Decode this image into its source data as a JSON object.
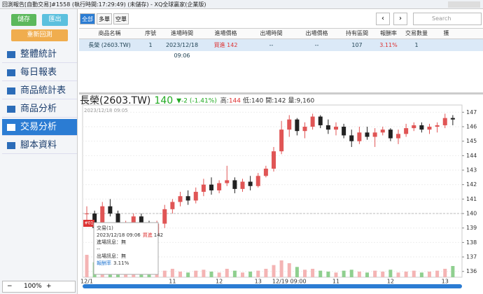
{
  "window": {
    "title": "回測報告[自動交易]#1558 (執行時間:17:29:49) (未儲存) - XQ全球贏家(企業版)"
  },
  "sidebar": {
    "buttons": [
      "儲存",
      "匯出",
      "重新回測"
    ],
    "menu": [
      "整體統計",
      "每日報表",
      "商品統計表",
      "商品分析",
      "交易分析",
      "腳本資料"
    ],
    "zoom": "100%"
  },
  "toolbar": {
    "tabs": [
      "全部",
      "多單",
      "空單"
    ],
    "search": "Search"
  },
  "table": {
    "columns": [
      "商品名稱",
      "序號",
      "進場時間",
      "進場價格",
      "出場時間",
      "出場價格",
      "持有區間",
      "報酬率",
      "交易數量",
      "獲"
    ],
    "rows": [
      [
        "長榮 (2603.TW)",
        "1",
        "2023/12/18 09:06",
        "買進 142",
        "--",
        "--",
        "107",
        "3.11%",
        "1",
        ""
      ]
    ]
  },
  "chart_data": {
    "type": "candlestick",
    "symbol": "長榮(2603.TW)",
    "price": 140,
    "change": "▼-2 (-1.41%)",
    "stats": [
      {
        "label": "高:",
        "value": 144
      },
      {
        "label": "低:",
        "value": 140
      },
      {
        "label": "開:",
        "value": 142
      },
      {
        "label": "量:",
        "value": "9,160"
      }
    ],
    "start_label": "2023/12/18 09:05",
    "categories": [
      "12/1",
      null,
      null,
      null,
      null,
      null,
      null,
      null,
      null,
      null,
      null,
      "11",
      null,
      null,
      null,
      null,
      null,
      "12",
      null,
      null,
      null,
      null,
      "13",
      null,
      null,
      null,
      "12/19 09:00",
      null,
      null,
      null,
      null,
      null,
      "11",
      null,
      null,
      null,
      null,
      null,
      null,
      "12",
      null,
      null,
      null,
      null,
      null,
      null,
      "13",
      null
    ],
    "open": [
      140,
      140,
      139,
      140.5,
      140,
      138.8,
      139.2,
      139.8,
      139,
      138.5,
      139.3,
      140.3,
      140.8,
      141.2,
      140.9,
      141.5,
      142,
      141.6,
      142.1,
      142.3,
      141.7,
      142.2,
      141.9,
      142.6,
      143.1,
      144.3,
      145.8,
      146.5,
      145.7,
      146,
      146.7,
      146.1,
      145.8,
      146,
      145.4,
      145,
      145.6,
      145.3,
      145.6,
      145.8,
      145.2,
      145.5,
      145.9,
      146.1,
      145.8,
      146,
      146.1,
      146.6
    ],
    "high": [
      140.5,
      140.2,
      140.8,
      141,
      140.2,
      139.5,
      140,
      140,
      139.5,
      139.5,
      140.6,
      141,
      141.5,
      141.6,
      141.8,
      142.4,
      142.5,
      142.3,
      143.3,
      142.5,
      142.4,
      142.6,
      142.8,
      143.3,
      144.6,
      146.4,
      146.8,
      146.6,
      146.3,
      146.9,
      146.8,
      146.5,
      146.3,
      146.2,
      145.8,
      146,
      146,
      145.9,
      146,
      145.9,
      145.8,
      146.2,
      146.3,
      146.3,
      146.2,
      146.3,
      146.9,
      146.8
    ],
    "low": [
      139.5,
      138.8,
      138.5,
      139.8,
      138.5,
      138,
      139,
      138.8,
      138,
      138.2,
      139,
      140,
      140.5,
      140.6,
      140.7,
      141.2,
      141.3,
      141.4,
      141.9,
      141.4,
      141.5,
      141.6,
      141.8,
      142.5,
      142.9,
      144.1,
      145.3,
      145.4,
      145.2,
      145.8,
      145.9,
      145.5,
      145.4,
      145.2,
      144.6,
      144.8,
      145.1,
      144.6,
      145.4,
      145,
      144.8,
      145.3,
      145.7,
      145.6,
      145.5,
      145.6,
      145.9,
      146.1
    ],
    "close": [
      140,
      139,
      140.5,
      140,
      138.8,
      139.2,
      139.8,
      139,
      138.5,
      139.3,
      140.3,
      140.8,
      141.2,
      140.9,
      141.5,
      142,
      141.6,
      142.1,
      142.3,
      141.7,
      142.2,
      141.9,
      142.6,
      143.1,
      144.3,
      145.8,
      146.5,
      145.7,
      146,
      146.7,
      146.1,
      145.8,
      146,
      145.4,
      145,
      145.6,
      145.3,
      145.6,
      145.8,
      145.2,
      145.5,
      145.9,
      146.1,
      145.8,
      146,
      146.1,
      146.6,
      146.5
    ],
    "volume": [
      2400,
      1600,
      1900,
      900,
      1200,
      700,
      600,
      800,
      900,
      500,
      700,
      900,
      600,
      500,
      700,
      800,
      600,
      500,
      900,
      700,
      500,
      600,
      700,
      900,
      1300,
      1800,
      1500,
      1100,
      800,
      900,
      700,
      600,
      500,
      700,
      800,
      600,
      500,
      700,
      600,
      800,
      500,
      600,
      700,
      500,
      600,
      700,
      900,
      1200
    ],
    "volume_lim": [
      0,
      3000
    ],
    "ylim": [
      135.6,
      147.5
    ],
    "yticks": [
      136,
      137,
      138,
      139,
      140,
      141,
      142,
      143,
      144,
      145,
      146,
      147
    ],
    "up_color": "#e05555",
    "down_color": "#222222",
    "tooltip": {
      "marker": "#01",
      "title": "交易(1)",
      "entry": "2023/12/18 09:06",
      "side": "買進",
      "entry_price": "142",
      "entry_msg": "進場訊息：無",
      "sep": "--",
      "exit_msg": "出場訊息：無",
      "ret_label": "報酬率",
      "ret": "3.11%"
    }
  }
}
